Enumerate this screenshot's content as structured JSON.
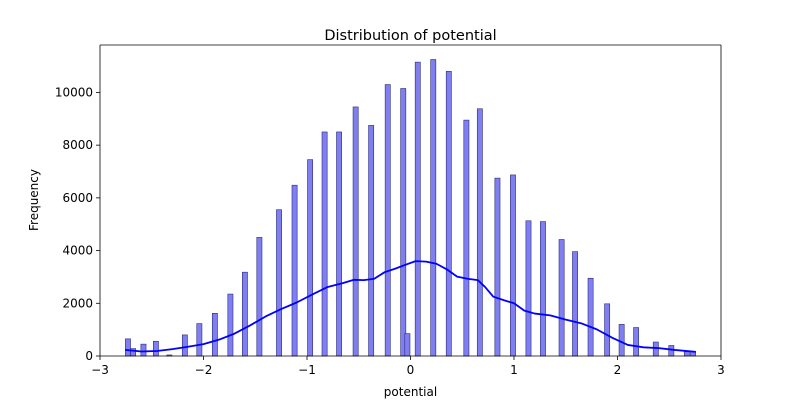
{
  "chart_data": {
    "type": "bar",
    "title": "Distribution of potential",
    "xlabel": "potential",
    "ylabel": "Frequency",
    "xlim": [
      -3,
      3
    ],
    "ylim": [
      0,
      11800
    ],
    "xticks": [
      -3,
      -2,
      -1,
      0,
      1,
      2,
      3
    ],
    "xtick_labels": [
      "−3",
      "−2",
      "−1",
      "0",
      "1",
      "2",
      "3"
    ],
    "yticks": [
      0,
      2000,
      4000,
      6000,
      8000,
      10000
    ],
    "ytick_labels": [
      "0",
      "2000",
      "4000",
      "6000",
      "8000",
      "10000"
    ],
    "grid": false,
    "legend": "none",
    "colors": {
      "bar_fill": "#7f7ff2",
      "bar_edge": "#2a2a7a",
      "kde": "#0000ff"
    },
    "bin_width": 0.05,
    "bars": [
      {
        "x": -2.73,
        "y": 650
      },
      {
        "x": -2.68,
        "y": 280
      },
      {
        "x": -2.58,
        "y": 450
      },
      {
        "x": -2.46,
        "y": 560
      },
      {
        "x": -2.33,
        "y": 40
      },
      {
        "x": -2.18,
        "y": 800
      },
      {
        "x": -2.04,
        "y": 1230
      },
      {
        "x": -1.89,
        "y": 1620
      },
      {
        "x": -1.74,
        "y": 2350
      },
      {
        "x": -1.6,
        "y": 3180
      },
      {
        "x": -1.46,
        "y": 4500
      },
      {
        "x": -1.27,
        "y": 5550
      },
      {
        "x": -1.12,
        "y": 6480
      },
      {
        "x": -0.97,
        "y": 7450
      },
      {
        "x": -0.83,
        "y": 8500
      },
      {
        "x": -0.69,
        "y": 8500
      },
      {
        "x": -0.53,
        "y": 9450
      },
      {
        "x": -0.38,
        "y": 8750
      },
      {
        "x": -0.22,
        "y": 10300
      },
      {
        "x": -0.07,
        "y": 10150
      },
      {
        "x": -0.03,
        "y": 850
      },
      {
        "x": 0.07,
        "y": 11150
      },
      {
        "x": 0.22,
        "y": 11250
      },
      {
        "x": 0.37,
        "y": 10800
      },
      {
        "x": 0.54,
        "y": 8950
      },
      {
        "x": 0.67,
        "y": 9380
      },
      {
        "x": 0.84,
        "y": 6750
      },
      {
        "x": 0.99,
        "y": 6870
      },
      {
        "x": 1.14,
        "y": 5130
      },
      {
        "x": 1.28,
        "y": 5100
      },
      {
        "x": 1.46,
        "y": 4420
      },
      {
        "x": 1.59,
        "y": 3960
      },
      {
        "x": 1.74,
        "y": 2950
      },
      {
        "x": 1.9,
        "y": 1980
      },
      {
        "x": 2.04,
        "y": 1200
      },
      {
        "x": 2.18,
        "y": 1080
      },
      {
        "x": 2.37,
        "y": 530
      },
      {
        "x": 2.52,
        "y": 400
      },
      {
        "x": 2.67,
        "y": 160
      },
      {
        "x": 2.73,
        "y": 170
      }
    ],
    "kde": {
      "x": [
        -2.75,
        -2.6,
        -2.45,
        -2.3,
        -2.15,
        -2.0,
        -1.85,
        -1.7,
        -1.55,
        -1.4,
        -1.25,
        -1.1,
        -0.95,
        -0.8,
        -0.65,
        -0.55,
        -0.45,
        -0.35,
        -0.25,
        -0.15,
        -0.05,
        0.05,
        0.15,
        0.25,
        0.35,
        0.45,
        0.55,
        0.65,
        0.72,
        0.8,
        0.9,
        1.0,
        1.1,
        1.2,
        1.35,
        1.5,
        1.65,
        1.8,
        1.95,
        2.1,
        2.25,
        2.4,
        2.55,
        2.75
      ],
      "y": [
        230,
        170,
        190,
        260,
        350,
        450,
        620,
        850,
        1160,
        1500,
        1780,
        2030,
        2330,
        2620,
        2770,
        2890,
        2880,
        2930,
        3180,
        3310,
        3460,
        3600,
        3580,
        3500,
        3290,
        3010,
        2930,
        2880,
        2620,
        2250,
        2120,
        2000,
        1720,
        1610,
        1540,
        1380,
        1240,
        1010,
        690,
        420,
        330,
        300,
        230,
        160
      ]
    }
  }
}
